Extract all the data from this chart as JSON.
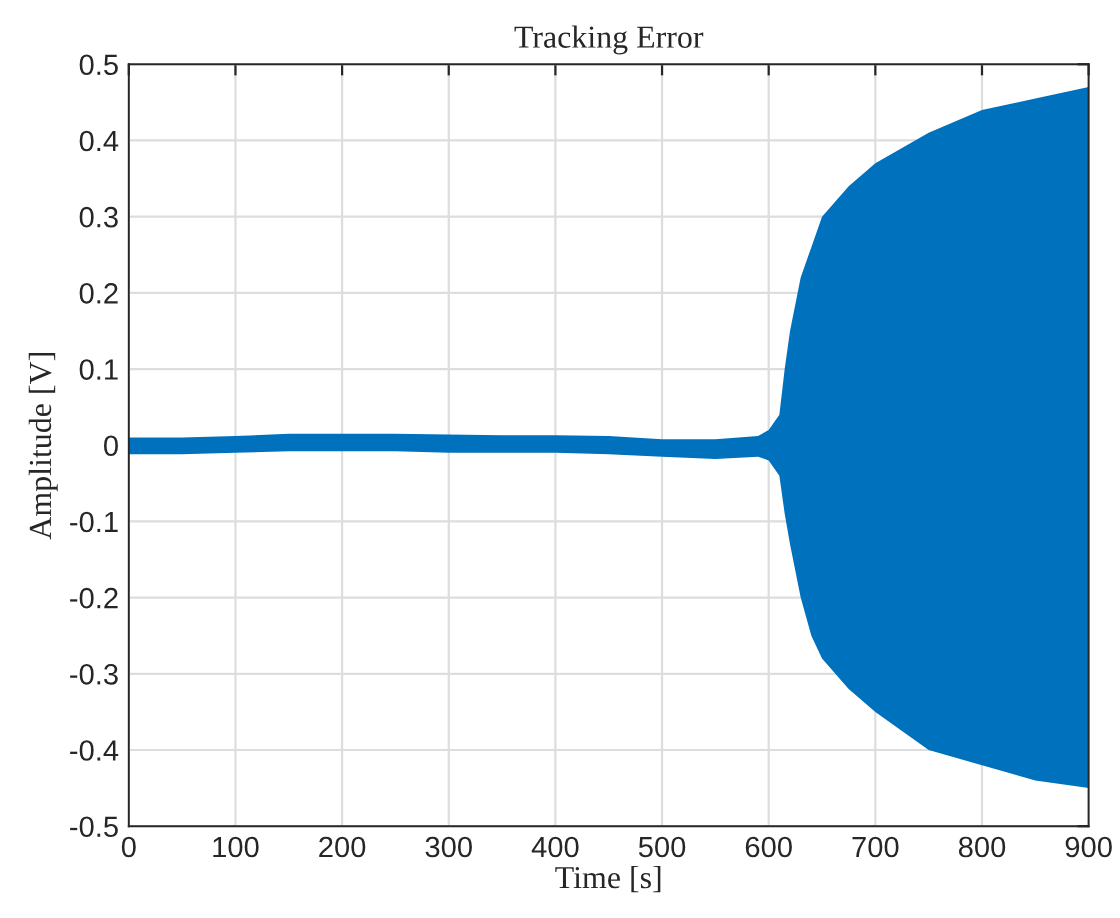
{
  "chart_data": {
    "type": "line",
    "title": "Tracking Error",
    "xlabel": "Time [s]",
    "ylabel": "Amplitude [V]",
    "x": [
      0,
      50,
      100,
      150,
      200,
      250,
      300,
      350,
      400,
      450,
      500,
      550,
      590,
      600,
      610,
      615,
      620,
      630,
      640,
      650,
      675,
      700,
      750,
      800,
      850,
      900
    ],
    "series": [
      {
        "color": "#0072bd",
        "values": [
          0,
          0,
          0,
          0,
          0,
          0,
          0,
          0,
          0,
          0,
          0,
          0,
          0,
          0,
          0,
          0,
          0,
          0,
          0,
          0,
          0,
          0,
          0,
          0,
          0,
          0
        ],
        "upper": [
          0.01,
          0.01,
          0.012,
          0.015,
          0.015,
          0.015,
          0.014,
          0.013,
          0.013,
          0.012,
          0.008,
          0.008,
          0.012,
          0.02,
          0.04,
          0.1,
          0.15,
          0.22,
          0.26,
          0.3,
          0.34,
          0.37,
          0.41,
          0.44,
          0.455,
          0.47
        ],
        "lower": [
          -0.012,
          -0.012,
          -0.01,
          -0.008,
          -0.008,
          -0.008,
          -0.01,
          -0.01,
          -0.01,
          -0.012,
          -0.015,
          -0.018,
          -0.015,
          -0.02,
          -0.04,
          -0.09,
          -0.13,
          -0.2,
          -0.25,
          -0.28,
          -0.32,
          -0.35,
          -0.4,
          -0.42,
          -0.44,
          -0.45
        ]
      }
    ],
    "xlim": [
      0,
      900
    ],
    "xticks": [
      0,
      100,
      200,
      300,
      400,
      500,
      600,
      700,
      800,
      900
    ],
    "ylim": [
      -0.5,
      0.5
    ],
    "yticks": [
      -0.5,
      -0.4,
      -0.3,
      -0.2,
      -0.1,
      0,
      0.1,
      0.2,
      0.3,
      0.4,
      0.5
    ],
    "grid": true
  }
}
